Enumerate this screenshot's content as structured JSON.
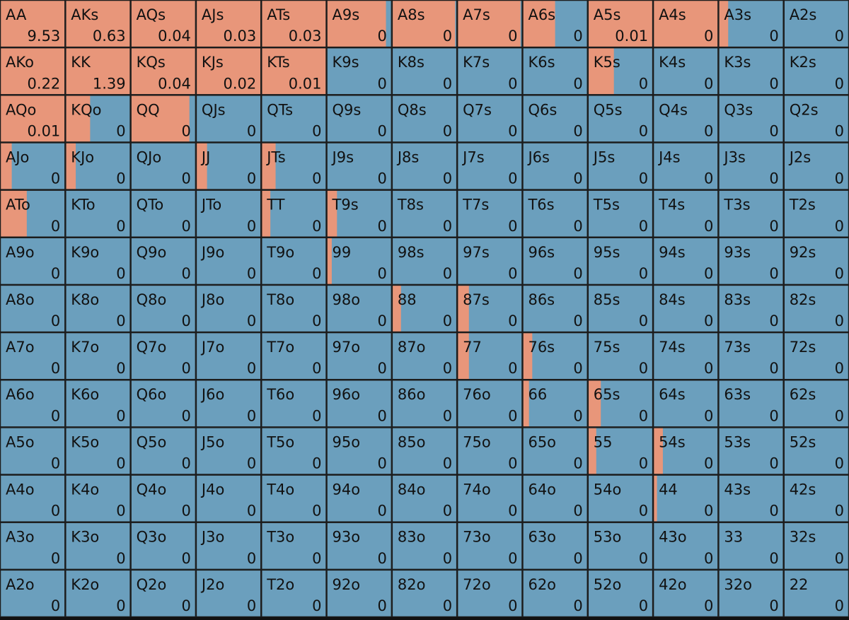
{
  "grid": {
    "hands": [
      [
        "AA",
        "AKs",
        "AQs",
        "AJs",
        "ATs",
        "A9s",
        "A8s",
        "A7s",
        "A6s",
        "A5s",
        "A4s",
        "A3s",
        "A2s"
      ],
      [
        "AKo",
        "KK",
        "KQs",
        "KJs",
        "KTs",
        "K9s",
        "K8s",
        "K7s",
        "K6s",
        "K5s",
        "K4s",
        "K3s",
        "K2s"
      ],
      [
        "AQo",
        "KQo",
        "QQ",
        "QJs",
        "QTs",
        "Q9s",
        "Q8s",
        "Q7s",
        "Q6s",
        "Q5s",
        "Q4s",
        "Q3s",
        "Q2s"
      ],
      [
        "AJo",
        "KJo",
        "QJo",
        "JJ",
        "JTs",
        "J9s",
        "J8s",
        "J7s",
        "J6s",
        "J5s",
        "J4s",
        "J3s",
        "J2s"
      ],
      [
        "ATo",
        "KTo",
        "QTo",
        "JTo",
        "TT",
        "T9s",
        "T8s",
        "T7s",
        "T6s",
        "T5s",
        "T4s",
        "T3s",
        "T2s"
      ],
      [
        "A9o",
        "K9o",
        "Q9o",
        "J9o",
        "T9o",
        "99",
        "98s",
        "97s",
        "96s",
        "95s",
        "94s",
        "93s",
        "92s"
      ],
      [
        "A8o",
        "K8o",
        "Q8o",
        "J8o",
        "T8o",
        "98o",
        "88",
        "87s",
        "86s",
        "85s",
        "84s",
        "83s",
        "82s"
      ],
      [
        "A7o",
        "K7o",
        "Q7o",
        "J7o",
        "T7o",
        "97o",
        "87o",
        "77",
        "76s",
        "75s",
        "74s",
        "73s",
        "72s"
      ],
      [
        "A6o",
        "K6o",
        "Q6o",
        "J6o",
        "T6o",
        "96o",
        "86o",
        "76o",
        "66",
        "65s",
        "64s",
        "63s",
        "62s"
      ],
      [
        "A5o",
        "K5o",
        "Q5o",
        "J5o",
        "T5o",
        "95o",
        "85o",
        "75o",
        "65o",
        "55",
        "54s",
        "53s",
        "52s"
      ],
      [
        "A4o",
        "K4o",
        "Q4o",
        "J4o",
        "T4o",
        "94o",
        "84o",
        "74o",
        "64o",
        "54o",
        "44",
        "43s",
        "42s"
      ],
      [
        "A3o",
        "K3o",
        "Q3o",
        "J3o",
        "T3o",
        "93o",
        "83o",
        "73o",
        "63o",
        "53o",
        "43o",
        "33",
        "32s"
      ],
      [
        "A2o",
        "K2o",
        "Q2o",
        "J2o",
        "T2o",
        "92o",
        "82o",
        "72o",
        "62o",
        "52o",
        "42o",
        "32o",
        "22"
      ]
    ],
    "values": [
      [
        9.53,
        0.63,
        0.04,
        0.03,
        0.03,
        0,
        0,
        0,
        0,
        0.01,
        0,
        0,
        0
      ],
      [
        0.22,
        1.39,
        0.04,
        0.02,
        0.01,
        0,
        0,
        0,
        0,
        0,
        0,
        0,
        0
      ],
      [
        0.01,
        0,
        0,
        0,
        0,
        0,
        0,
        0,
        0,
        0,
        0,
        0,
        0
      ],
      [
        0,
        0,
        0,
        0,
        0,
        0,
        0,
        0,
        0,
        0,
        0,
        0,
        0
      ],
      [
        0,
        0,
        0,
        0,
        0,
        0,
        0,
        0,
        0,
        0,
        0,
        0,
        0
      ],
      [
        0,
        0,
        0,
        0,
        0,
        0,
        0,
        0,
        0,
        0,
        0,
        0,
        0
      ],
      [
        0,
        0,
        0,
        0,
        0,
        0,
        0,
        0,
        0,
        0,
        0,
        0,
        0
      ],
      [
        0,
        0,
        0,
        0,
        0,
        0,
        0,
        0,
        0,
        0,
        0,
        0,
        0
      ],
      [
        0,
        0,
        0,
        0,
        0,
        0,
        0,
        0,
        0,
        0,
        0,
        0,
        0
      ],
      [
        0,
        0,
        0,
        0,
        0,
        0,
        0,
        0,
        0,
        0,
        0,
        0,
        0
      ],
      [
        0,
        0,
        0,
        0,
        0,
        0,
        0,
        0,
        0,
        0,
        0,
        0,
        0
      ],
      [
        0,
        0,
        0,
        0,
        0,
        0,
        0,
        0,
        0,
        0,
        0,
        0,
        0
      ],
      [
        0,
        0,
        0,
        0,
        0,
        0,
        0,
        0,
        0,
        0,
        0,
        0,
        0
      ]
    ],
    "raise_frequency": [
      [
        1,
        1,
        1,
        1,
        1,
        0.91,
        0.97,
        0.97,
        0.5,
        1,
        1,
        0.15,
        0
      ],
      [
        1,
        1,
        1,
        1,
        1,
        0,
        0,
        0,
        0,
        0.4,
        0,
        0,
        0
      ],
      [
        1,
        0.38,
        0.9,
        0,
        0,
        0,
        0,
        0,
        0,
        0,
        0,
        0,
        0
      ],
      [
        0.18,
        0.16,
        0,
        0.17,
        0.22,
        0,
        0,
        0,
        0,
        0,
        0,
        0,
        0
      ],
      [
        0.41,
        0,
        0,
        0,
        0.14,
        0.16,
        0,
        0,
        0,
        0,
        0,
        0,
        0
      ],
      [
        0,
        0,
        0,
        0,
        0,
        0.08,
        0,
        0,
        0,
        0,
        0,
        0,
        0
      ],
      [
        0,
        0,
        0,
        0,
        0,
        0,
        0.14,
        0.18,
        0,
        0,
        0,
        0,
        0
      ],
      [
        0,
        0,
        0,
        0,
        0,
        0,
        0,
        0.18,
        0.15,
        0,
        0,
        0,
        0
      ],
      [
        0,
        0,
        0,
        0,
        0,
        0,
        0,
        0,
        0.1,
        0.2,
        0,
        0,
        0
      ],
      [
        0,
        0,
        0,
        0,
        0,
        0,
        0,
        0,
        0,
        0.13,
        0.15,
        0,
        0
      ],
      [
        0,
        0,
        0,
        0,
        0,
        0,
        0,
        0,
        0,
        0,
        0.06,
        0,
        0
      ],
      [
        0,
        0,
        0,
        0,
        0,
        0,
        0,
        0,
        0,
        0,
        0,
        0,
        0
      ],
      [
        0,
        0,
        0,
        0,
        0,
        0,
        0,
        0,
        0,
        0,
        0,
        0,
        0
      ]
    ]
  }
}
